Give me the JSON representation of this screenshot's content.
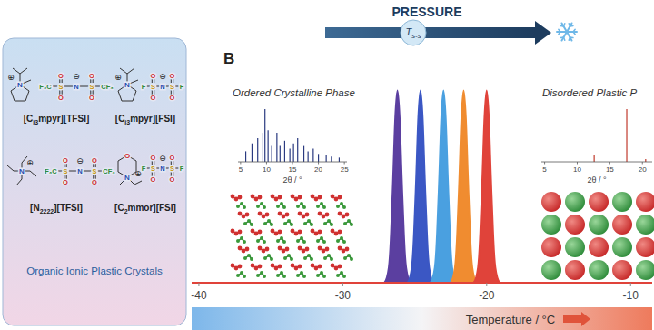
{
  "panel_a": {
    "title": "Organic Ionic Plastic Crystals",
    "oxygen": "O",
    "plus": "⊕",
    "minus": "⊖",
    "compounds": [
      {
        "label": [
          "[C",
          "i3",
          "mpyr][TFSI]"
        ],
        "cation": [
          "N"
        ],
        "anion": [
          "F₃C",
          "S",
          "N",
          "S",
          "CF₃"
        ]
      },
      {
        "label": [
          "[C",
          "i3",
          "mpyr][FSI]"
        ],
        "cation": [
          "N"
        ],
        "anion": [
          "F",
          "S",
          "N",
          "S",
          "F"
        ]
      },
      {
        "label": [
          "[N",
          "2222",
          "][TFSI]"
        ],
        "cation": [
          "N"
        ],
        "anion": [
          "F₃C",
          "S",
          "N",
          "S",
          "CF₃"
        ]
      },
      {
        "label": [
          "[C",
          "2",
          "mmor][FSI]"
        ],
        "cation": [
          "N",
          "O"
        ],
        "anion": [
          "F",
          "S",
          "N",
          "S",
          "F"
        ]
      }
    ]
  },
  "panel_b": {
    "label": "B",
    "pressure": "PRESSURE",
    "transition": [
      "T",
      "s-s"
    ],
    "ordered": {
      "title": "Ordered Crystalline Phase",
      "xrd": {
        "xlabel": "2θ / °",
        "xlim": [
          4.5,
          25.5
        ],
        "xticks": [
          5,
          10,
          15,
          20,
          25
        ],
        "ylim": [
          0,
          1
        ],
        "x": [
          6.0,
          7.2,
          8.3,
          9.3,
          9.7,
          10.3,
          11.0,
          12.0,
          12.6,
          13.5,
          14.5,
          15.2,
          16.0,
          17.2,
          18.0,
          19.0,
          20.0,
          21.5,
          22.5,
          24.0
        ],
        "values": [
          0.2,
          0.35,
          0.45,
          0.55,
          1.0,
          0.6,
          0.3,
          0.55,
          0.3,
          0.4,
          0.25,
          0.35,
          0.45,
          0.3,
          0.2,
          0.25,
          0.15,
          0.12,
          0.1,
          0.08
        ]
      }
    },
    "disordered": {
      "title": "Disordered Plastic P",
      "xrd": {
        "xlabel": "2θ / °",
        "xlim": [
          4.5,
          21.5
        ],
        "xticks": [
          5,
          10,
          15,
          20
        ],
        "ylim": [
          0,
          1
        ],
        "x": [
          12.6,
          17.6,
          20.5
        ],
        "values": [
          0.12,
          1.0,
          0.05
        ]
      }
    }
  },
  "chart_data": {
    "type": "area",
    "x_label": "Temperature / °C",
    "xlim": [
      -40.5,
      -8.5
    ],
    "xticks": [
      -40,
      -30,
      -20,
      -10
    ],
    "ylim": [
      0,
      1.05
    ],
    "tick_labels": "x",
    "series": [
      {
        "color": "#5b3fa0",
        "x": [
          -27.7,
          -27.1,
          -26.8,
          -26.65,
          -26.5,
          -26.35,
          -26.2,
          -26.05,
          -25.9,
          -25.75,
          -25.6,
          -25.3,
          -24.7
        ],
        "values": [
          0,
          0,
          0.08,
          0.25,
          0.54,
          0.86,
          1,
          0.86,
          0.54,
          0.25,
          0.08,
          0,
          0
        ]
      },
      {
        "color": "#3b57c4",
        "x": [
          -26.1,
          -25.5,
          -25.2,
          -25.05,
          -24.9,
          -24.75,
          -24.6,
          -24.45,
          -24.3,
          -24.15,
          -24.0,
          -23.7,
          -23.1
        ],
        "values": [
          0,
          0,
          0.08,
          0.25,
          0.54,
          0.86,
          1,
          0.86,
          0.54,
          0.25,
          0.08,
          0,
          0
        ]
      },
      {
        "color": "#4aa0e0",
        "x": [
          -24.5,
          -23.9,
          -23.6,
          -23.45,
          -23.3,
          -23.15,
          -23.0,
          -22.85,
          -22.7,
          -22.55,
          -22.4,
          -22.1,
          -21.5
        ],
        "values": [
          0,
          0,
          0.08,
          0.25,
          0.54,
          0.86,
          1,
          0.86,
          0.54,
          0.25,
          0.08,
          0,
          0
        ]
      },
      {
        "color": "#f08c30",
        "x": [
          -23.1,
          -22.5,
          -22.2,
          -22.05,
          -21.9,
          -21.75,
          -21.6,
          -21.45,
          -21.3,
          -21.15,
          -21.0,
          -20.7,
          -20.1
        ],
        "values": [
          0,
          0,
          0.08,
          0.25,
          0.54,
          0.86,
          1,
          0.86,
          0.54,
          0.25,
          0.08,
          0,
          0
        ]
      },
      {
        "color": "#e0433a",
        "x": [
          -40.5,
          -21.5,
          -20.9,
          -20.6,
          -20.45,
          -20.3,
          -20.15,
          -20.0,
          -19.85,
          -19.7,
          -19.55,
          -19.4,
          -19.1,
          -18.5,
          -8.5
        ],
        "values": [
          0,
          0,
          0,
          0.08,
          0.25,
          0.54,
          0.86,
          1,
          0.86,
          0.54,
          0.25,
          0.08,
          0,
          0,
          0
        ]
      }
    ]
  }
}
